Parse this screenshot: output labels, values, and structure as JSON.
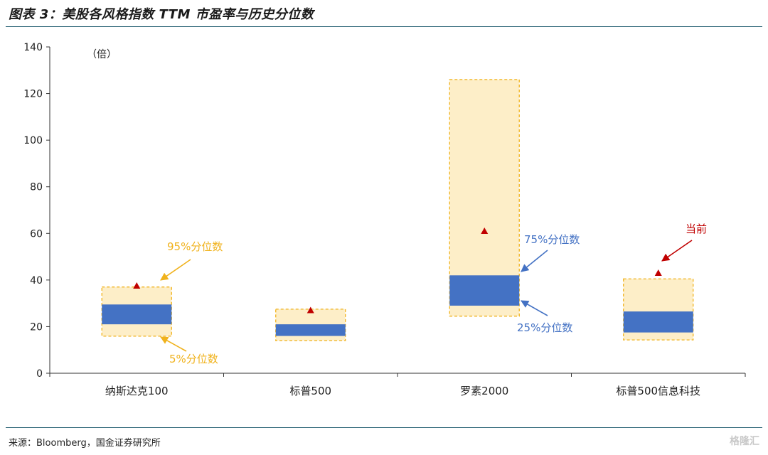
{
  "figure": {
    "title": "图表 3：美股各风格指数 TTM 市盈率与历史分位数",
    "source": "来源：Bloomberg，国金证券研究所",
    "watermark": "格隆汇"
  },
  "chart_data": {
    "type": "box",
    "unit_label": "（倍）",
    "ylim": [
      0,
      140
    ],
    "yticks": [
      0,
      20,
      40,
      60,
      80,
      100,
      120,
      140
    ],
    "categories": [
      "纳斯达克100",
      "标普500",
      "罗素2000",
      "标普500信息科技"
    ],
    "series": [
      {
        "name": "5%分位数",
        "values": [
          15.9,
          14.0,
          24.5,
          14.3
        ]
      },
      {
        "name": "25%分位数",
        "values": [
          21.0,
          16.0,
          29.0,
          17.5
        ]
      },
      {
        "name": "75%分位数",
        "values": [
          29.5,
          21.0,
          42.0,
          26.5
        ]
      },
      {
        "name": "95%分位数",
        "values": [
          37.0,
          27.5,
          126.0,
          40.5
        ]
      },
      {
        "name": "当前",
        "values": [
          37.5,
          27.0,
          61.0,
          43.0
        ]
      }
    ],
    "colors": {
      "outer_fill": "#fdeec8",
      "outer_border": "#f0b21c",
      "inner_fill": "#4472c4",
      "current_marker": "#c00000",
      "annot_yellow": "#f0b21c",
      "annot_blue": "#4472c4",
      "annot_red": "#c00000",
      "axis": "#333333"
    },
    "annotations": [
      {
        "text": "95%分位数",
        "color": "annot_yellow"
      },
      {
        "text": "5%分位数",
        "color": "annot_yellow"
      },
      {
        "text": "75%分位数",
        "color": "annot_blue"
      },
      {
        "text": "25%分位数",
        "color": "annot_blue"
      },
      {
        "text": "当前",
        "color": "annot_red"
      }
    ]
  }
}
